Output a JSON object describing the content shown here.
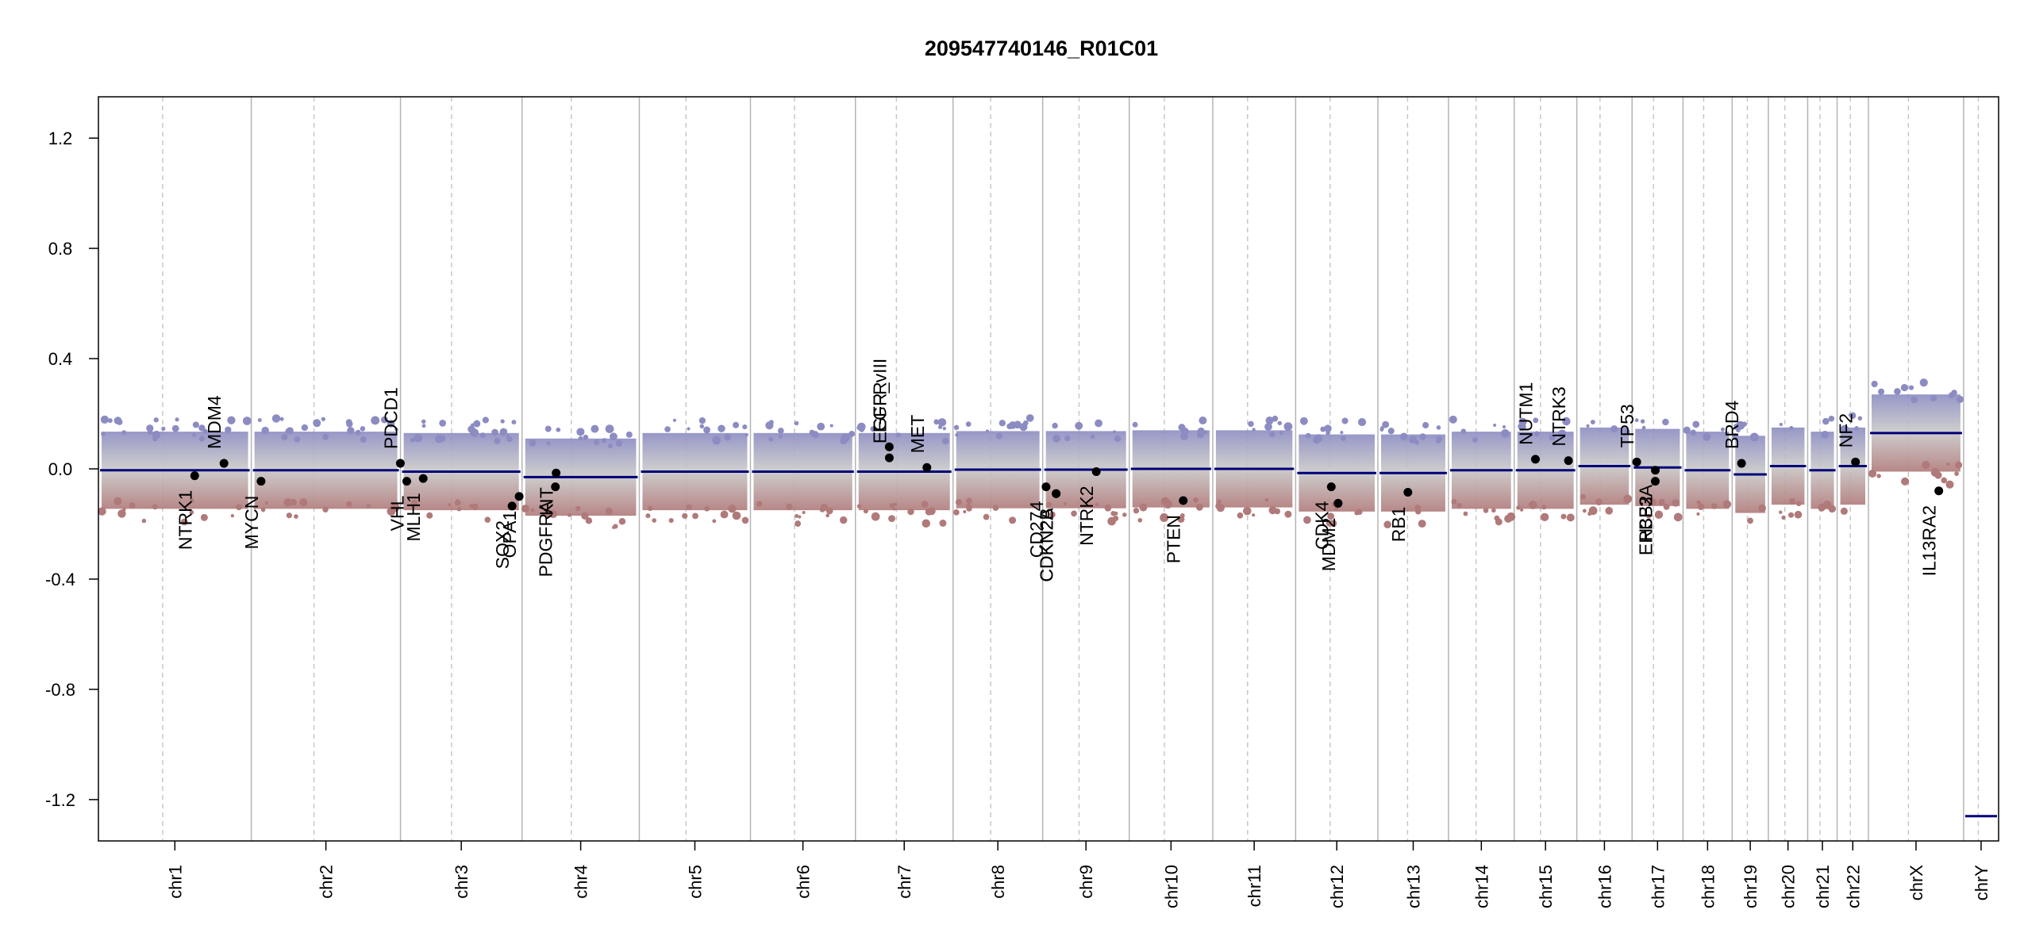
{
  "chart_data": {
    "type": "scatter",
    "title": "209547740146_R01C01",
    "xlabel": "",
    "ylabel": "",
    "ylim": [
      -1.35,
      1.35
    ],
    "yticks": [
      -1.2,
      -0.8,
      -0.4,
      0.0,
      0.4,
      0.8,
      1.2
    ],
    "ytick_labels": [
      "-1.2",
      "-0.8",
      "-0.4",
      "0.0",
      "0.4",
      "0.8",
      "1.2"
    ],
    "grid": false,
    "legend": "none",
    "colors": {
      "high": "#8c8cc2",
      "neutral": "#c8c8c8",
      "low": "#b07a7a",
      "segment": "#00007a",
      "chrom_line": "#b4b4b4",
      "gene_dot": "#000000"
    },
    "chromosomes": [
      {
        "name": "chr1",
        "length": 249,
        "segments": [
          [
            0,
            249,
            -0.005
          ]
        ]
      },
      {
        "name": "chr2",
        "length": 243,
        "segments": [
          [
            0,
            243,
            -0.005
          ]
        ]
      },
      {
        "name": "chr3",
        "length": 198,
        "segments": [
          [
            0,
            198,
            -0.01
          ]
        ]
      },
      {
        "name": "chr4",
        "length": 191,
        "segments": [
          [
            0,
            191,
            -0.03
          ]
        ]
      },
      {
        "name": "chr5",
        "length": 181,
        "segments": [
          [
            0,
            181,
            -0.01
          ]
        ]
      },
      {
        "name": "chr6",
        "length": 171,
        "segments": [
          [
            0,
            171,
            -0.01
          ]
        ]
      },
      {
        "name": "chr7",
        "length": 159,
        "segments": [
          [
            0,
            159,
            -0.01
          ]
        ]
      },
      {
        "name": "chr8",
        "length": 146,
        "segments": [
          [
            0,
            146,
            -0.003
          ]
        ]
      },
      {
        "name": "chr9",
        "length": 141,
        "segments": [
          [
            0,
            141,
            -0.003
          ]
        ]
      },
      {
        "name": "chr10",
        "length": 136,
        "segments": [
          [
            0,
            136,
            0.0
          ]
        ]
      },
      {
        "name": "chr11",
        "length": 135,
        "segments": [
          [
            0,
            135,
            0.0
          ]
        ]
      },
      {
        "name": "chr12",
        "length": 134,
        "segments": [
          [
            0,
            134,
            -0.015
          ]
        ]
      },
      {
        "name": "chr13",
        "length": 115,
        "segments": [
          [
            0,
            115,
            -0.015
          ]
        ]
      },
      {
        "name": "chr14",
        "length": 107,
        "segments": [
          [
            0,
            107,
            -0.005
          ]
        ]
      },
      {
        "name": "chr15",
        "length": 102,
        "segments": [
          [
            0,
            102,
            -0.005
          ]
        ]
      },
      {
        "name": "chr16",
        "length": 90,
        "segments": [
          [
            0,
            90,
            0.01
          ]
        ]
      },
      {
        "name": "chr17",
        "length": 83,
        "segments": [
          [
            0,
            83,
            0.005
          ]
        ]
      },
      {
        "name": "chr18",
        "length": 80,
        "segments": [
          [
            0,
            80,
            -0.005
          ]
        ]
      },
      {
        "name": "chr19",
        "length": 59,
        "segments": [
          [
            0,
            59,
            -0.02
          ]
        ]
      },
      {
        "name": "chr20",
        "length": 64,
        "segments": [
          [
            0,
            64,
            0.01
          ]
        ]
      },
      {
        "name": "chr21",
        "length": 48,
        "segments": [
          [
            0,
            48,
            -0.005
          ]
        ]
      },
      {
        "name": "chr22",
        "length": 51,
        "segments": [
          [
            0,
            51,
            0.01
          ]
        ]
      },
      {
        "name": "chrX",
        "length": 155,
        "segments": [
          [
            0,
            155,
            0.13
          ]
        ]
      },
      {
        "name": "chrY",
        "length": 57,
        "segments": [
          [
            0,
            57,
            -1.26
          ]
        ]
      }
    ],
    "genes": [
      {
        "name": "NTRK1",
        "chr": "chr1",
        "pos": 156.8,
        "value": -0.025
      },
      {
        "name": "MDM4",
        "chr": "chr1",
        "pos": 204.5,
        "value": 0.02
      },
      {
        "name": "MYCN",
        "chr": "chr2",
        "pos": 15.9,
        "value": -0.045
      },
      {
        "name": "PDCD1",
        "chr": "chr2",
        "pos": 242.8,
        "value": 0.02
      },
      {
        "name": "VHL",
        "chr": "chr3",
        "pos": 10.2,
        "value": -0.045
      },
      {
        "name": "MLH1",
        "chr": "chr3",
        "pos": 37.0,
        "value": -0.035
      },
      {
        "name": "SOX2",
        "chr": "chr3",
        "pos": 181.7,
        "value": -0.135
      },
      {
        "name": "OPA1",
        "chr": "chr3",
        "pos": 193.3,
        "value": -0.1
      },
      {
        "name": "PDGFRA",
        "chr": "chr4",
        "pos": 54.3,
        "value": -0.065
      },
      {
        "name": "KIT",
        "chr": "chr4",
        "pos": 55.5,
        "value": -0.015
      },
      {
        "name": "EGFR",
        "chr": "chr7",
        "pos": 55.1,
        "value": 0.08
      },
      {
        "name": "EGFR_vIII",
        "chr": "chr7",
        "pos": 55.2,
        "value": 0.04
      },
      {
        "name": "MET",
        "chr": "chr7",
        "pos": 116.4,
        "value": 0.005
      },
      {
        "name": "CD274",
        "chr": "chr9",
        "pos": 5.5,
        "value": -0.065
      },
      {
        "name": "CDKN2A",
        "chr": "chr9",
        "pos": 21.9,
        "value": -0.09
      },
      {
        "name": "CDKN2B",
        "chr": "chr9",
        "pos": 22.0,
        "value": -0.09
      },
      {
        "name": "NTRK2",
        "chr": "chr9",
        "pos": 87.3,
        "value": -0.01
      },
      {
        "name": "PTEN",
        "chr": "chr10",
        "pos": 87.9,
        "value": -0.115
      },
      {
        "name": "CDK4",
        "chr": "chr12",
        "pos": 58.1,
        "value": -0.065
      },
      {
        "name": "MDM2",
        "chr": "chr12",
        "pos": 69.2,
        "value": -0.125
      },
      {
        "name": "RB1",
        "chr": "chr13",
        "pos": 48.9,
        "value": -0.085
      },
      {
        "name": "NUTM1",
        "chr": "chr15",
        "pos": 34.6,
        "value": 0.035
      },
      {
        "name": "NTRK3",
        "chr": "chr15",
        "pos": 88.4,
        "value": 0.03
      },
      {
        "name": "TP53",
        "chr": "chr17",
        "pos": 7.6,
        "value": 0.025
      },
      {
        "name": "ERBB2",
        "chr": "chr17",
        "pos": 37.8,
        "value": -0.045
      },
      {
        "name": "H3F3A",
        "chr": "chr17",
        "pos": 37.9,
        "value": -0.005
      },
      {
        "name": "BRD4",
        "chr": "chr19",
        "pos": 15.3,
        "value": 0.02
      },
      {
        "name": "NF2",
        "chr": "chr22",
        "pos": 29.9,
        "value": 0.025
      },
      {
        "name": "IL13RA2",
        "chr": "chrX",
        "pos": 114.6,
        "value": -0.08
      }
    ]
  }
}
